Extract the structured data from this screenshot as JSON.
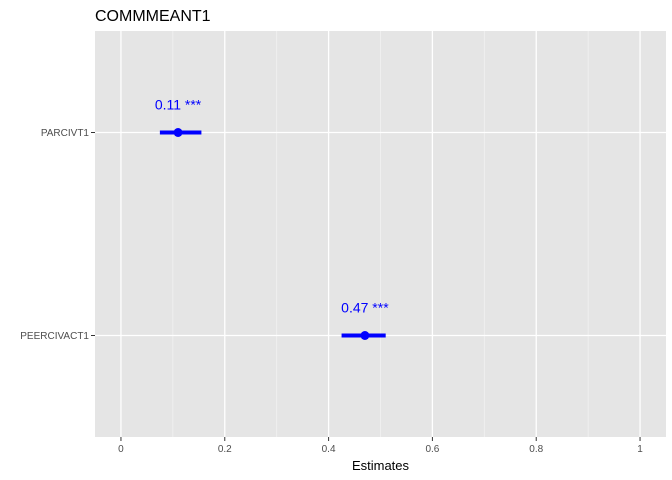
{
  "chart_data": {
    "type": "forest",
    "title": "COMMMEANT1",
    "xlabel": "Estimates",
    "ylabel": "",
    "xlim": [
      -0.05,
      1.05
    ],
    "x_ticks": [
      0,
      0.2,
      0.4,
      0.6,
      0.8,
      1
    ],
    "x_tick_labels": [
      "0",
      "0.2",
      "0.4",
      "0.6",
      "0.8",
      "1"
    ],
    "categories": [
      "PARCIVT1",
      "PEERCIVACT1"
    ],
    "estimates": [
      0.11,
      0.47
    ],
    "ci_low": [
      0.075,
      0.425
    ],
    "ci_high": [
      0.155,
      0.51
    ],
    "labels": [
      "0.11 ***",
      "0.47 ***"
    ],
    "grid": true,
    "colors": {
      "point": "#0000ff",
      "label": "#0000ff",
      "panel_bg": "#e5e5e5",
      "grid_major": "#ffffff",
      "grid_minor": "#f2f2f2"
    }
  }
}
